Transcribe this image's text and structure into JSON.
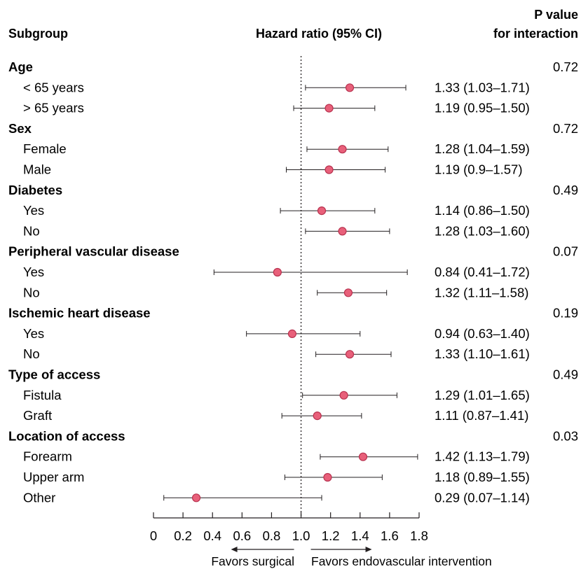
{
  "headers": {
    "subgroup": "Subgroup",
    "hazard_ratio": "Hazard ratio (95% CI)",
    "p_value_line1": "P value",
    "p_value_line2": "for interaction"
  },
  "favors": {
    "left": "Favors surgical",
    "right": "Favors endovascular intervention"
  },
  "colors": {
    "marker_fill": "#e8607a",
    "marker_stroke": "#b8324f",
    "line": "#231f20"
  },
  "chart_data": {
    "type": "forest",
    "xlim": [
      0,
      1.8
    ],
    "reference_line": 1.0,
    "ticks": [
      "0",
      "0.2",
      "0.4",
      "0.6",
      "0.8",
      "1.0",
      "1.2",
      "1.4",
      "1.6",
      "1.8"
    ],
    "groups": [
      {
        "label": "Age",
        "p_value": "0.72",
        "rows": [
          {
            "label": "< 65 years",
            "hr": 1.33,
            "lo": 1.03,
            "hi": 1.71,
            "text": "1.33 (1.03–1.71)"
          },
          {
            "label": "> 65 years",
            "hr": 1.19,
            "lo": 0.95,
            "hi": 1.5,
            "text": "1.19 (0.95–1.50)"
          }
        ]
      },
      {
        "label": "Sex",
        "p_value": "0.72",
        "rows": [
          {
            "label": "Female",
            "hr": 1.28,
            "lo": 1.04,
            "hi": 1.59,
            "text": "1.28 (1.04–1.59)"
          },
          {
            "label": "Male",
            "hr": 1.19,
            "lo": 0.9,
            "hi": 1.57,
            "text": "1.19 (0.9–1.57)"
          }
        ]
      },
      {
        "label": "Diabetes",
        "p_value": "0.49",
        "rows": [
          {
            "label": "Yes",
            "hr": 1.14,
            "lo": 0.86,
            "hi": 1.5,
            "text": "1.14 (0.86–1.50)"
          },
          {
            "label": "No",
            "hr": 1.28,
            "lo": 1.03,
            "hi": 1.6,
            "text": "1.28 (1.03–1.60)"
          }
        ]
      },
      {
        "label": "Peripheral vascular disease",
        "p_value": "0.07",
        "rows": [
          {
            "label": "Yes",
            "hr": 0.84,
            "lo": 0.41,
            "hi": 1.72,
            "text": "0.84 (0.41–1.72)"
          },
          {
            "label": "No",
            "hr": 1.32,
            "lo": 1.11,
            "hi": 1.58,
            "text": "1.32 (1.11–1.58)"
          }
        ]
      },
      {
        "label": "Ischemic heart disease",
        "p_value": "0.19",
        "rows": [
          {
            "label": "Yes",
            "hr": 0.94,
            "lo": 0.63,
            "hi": 1.4,
            "text": "0.94 (0.63–1.40)"
          },
          {
            "label": "No",
            "hr": 1.33,
            "lo": 1.1,
            "hi": 1.61,
            "text": "1.33 (1.10–1.61)"
          }
        ]
      },
      {
        "label": "Type of access",
        "p_value": "0.49",
        "rows": [
          {
            "label": "Fistula",
            "hr": 1.29,
            "lo": 1.01,
            "hi": 1.65,
            "text": "1.29 (1.01–1.65)"
          },
          {
            "label": "Graft",
            "hr": 1.11,
            "lo": 0.87,
            "hi": 1.41,
            "text": "1.11 (0.87–1.41)"
          }
        ]
      },
      {
        "label": "Location of access",
        "p_value": "0.03",
        "rows": [
          {
            "label": "Forearm",
            "hr": 1.42,
            "lo": 1.13,
            "hi": 1.79,
            "text": "1.42 (1.13–1.79)"
          },
          {
            "label": "Upper arm",
            "hr": 1.18,
            "lo": 0.89,
            "hi": 1.55,
            "text": "1.18 (0.89–1.55)"
          },
          {
            "label": "Other",
            "hr": 0.29,
            "lo": 0.07,
            "hi": 1.14,
            "text": "0.29 (0.07–1.14)"
          }
        ]
      }
    ]
  }
}
